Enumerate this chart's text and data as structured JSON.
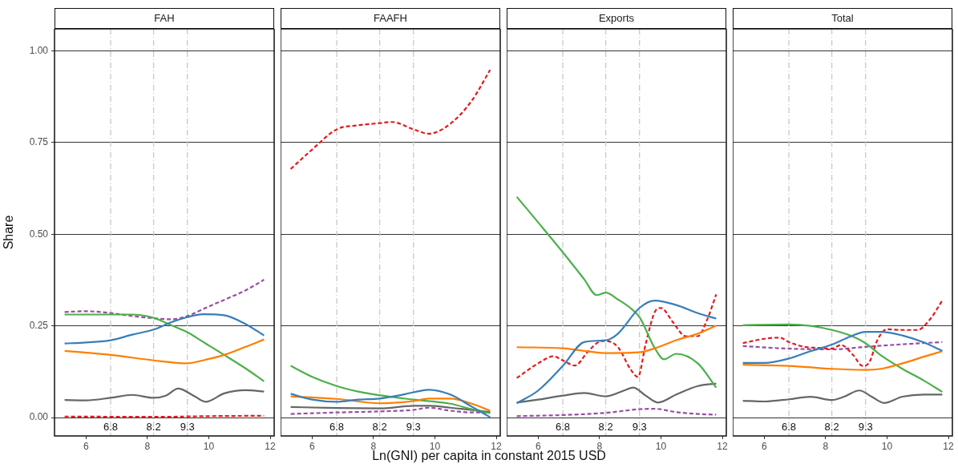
{
  "chart_data": [
    {
      "type": "line",
      "title": "FAH",
      "ylabel": "Share",
      "xlim": [
        4.97,
        12.13
      ],
      "xticks": [
        6,
        8,
        10,
        12
      ],
      "ylim": [
        -0.05,
        1.06
      ],
      "yticks": [
        {
          "value": 0,
          "label": "0.00"
        },
        {
          "value": 0.25,
          "label": "0.25"
        },
        {
          "value": 0.5,
          "label": "0.50"
        },
        {
          "value": 0.75,
          "label": "0.75"
        },
        {
          "value": 1,
          "label": "1.00"
        }
      ],
      "grid": "y",
      "legend": false,
      "marker": "none",
      "ref_lines": [
        {
          "axis": "x",
          "value": 6.8,
          "label": "6.8",
          "color": "#c8c8c8",
          "line_style": "dashed"
        },
        {
          "axis": "x",
          "value": 8.2,
          "label": "8.2",
          "color": "#c8c8c8",
          "line_style": "dashed"
        },
        {
          "axis": "x",
          "value": 9.3,
          "label": "9.3",
          "color": "#c8c8c8",
          "line_style": "dashed"
        }
      ],
      "series": [
        {
          "color": "#377eb8",
          "line_style": "solid",
          "x": [
            5.3,
            6,
            6.8,
            7.5,
            8.2,
            8.8,
            9.3,
            9.8,
            10.5,
            11.2,
            11.8
          ],
          "values": [
            0.202,
            0.205,
            0.211,
            0.226,
            0.24,
            0.261,
            0.274,
            0.282,
            0.279,
            0.255,
            0.224
          ]
        },
        {
          "color": "#ff7f00",
          "line_style": "solid",
          "x": [
            5.3,
            6.8,
            8.2,
            9.3,
            9.8,
            10.5,
            11.2,
            11.8
          ],
          "values": [
            0.182,
            0.171,
            0.156,
            0.148,
            0.156,
            0.171,
            0.193,
            0.213
          ]
        },
        {
          "color": "#4daf4a",
          "line_style": "solid",
          "x": [
            5.3,
            6.8,
            7.5,
            8.2,
            8.8,
            9.3,
            9.8,
            10.5,
            11.2,
            11.8
          ],
          "values": [
            0.281,
            0.281,
            0.281,
            0.272,
            0.251,
            0.233,
            0.207,
            0.171,
            0.134,
            0.099
          ]
        },
        {
          "color": "#666666",
          "line_style": "solid",
          "x": [
            5.3,
            6,
            6.8,
            7.5,
            8.2,
            8.6,
            9,
            9.5,
            9.9,
            10.5,
            11.2,
            11.8
          ],
          "values": [
            0.048,
            0.047,
            0.054,
            0.062,
            0.054,
            0.06,
            0.079,
            0.06,
            0.043,
            0.066,
            0.075,
            0.071
          ]
        },
        {
          "color": "#e41a1c",
          "line_style": "dashed",
          "x": [
            5.3,
            8.2,
            10,
            11.8
          ],
          "values": [
            0.003,
            0.002,
            0.004,
            0.005
          ]
        },
        {
          "color": "#984ea3",
          "line_style": "dashed",
          "x": [
            5.3,
            6,
            6.8,
            7.5,
            8.2,
            8.8,
            9.3,
            10,
            10.5,
            11.2,
            11.8
          ],
          "values": [
            0.288,
            0.29,
            0.285,
            0.277,
            0.271,
            0.268,
            0.277,
            0.303,
            0.321,
            0.347,
            0.376
          ]
        }
      ]
    },
    {
      "type": "line",
      "title": "FAAFH",
      "xlabel": "Ln(GNI) per capita in constant 2015 USD",
      "xlim": [
        4.97,
        12.13
      ],
      "xticks": [
        6,
        8,
        10,
        12
      ],
      "ylim": [
        -0.05,
        1.06
      ],
      "yticks": [
        0,
        0.25,
        0.5,
        0.75,
        1
      ],
      "tick_labels": "x",
      "grid": "y",
      "legend": false,
      "marker": "none",
      "ref_lines": [
        {
          "axis": "x",
          "value": 6.8,
          "label": "6.8",
          "color": "#c8c8c8",
          "line_style": "dashed"
        },
        {
          "axis": "x",
          "value": 8.2,
          "label": "8.2",
          "color": "#c8c8c8",
          "line_style": "dashed"
        },
        {
          "axis": "x",
          "value": 9.3,
          "label": "9.3",
          "color": "#c8c8c8",
          "line_style": "dashed"
        }
      ],
      "series": [
        {
          "color": "#377eb8",
          "line_style": "solid",
          "x": [
            5.3,
            6,
            6.8,
            7.5,
            8.2,
            8.8,
            9.3,
            9.8,
            10.5,
            11.2,
            11.8
          ],
          "values": [
            0.065,
            0.049,
            0.043,
            0.049,
            0.052,
            0.06,
            0.069,
            0.076,
            0.063,
            0.03,
            0.001
          ]
        },
        {
          "color": "#ff7f00",
          "line_style": "solid",
          "x": [
            5.3,
            6.8,
            8.2,
            9.3,
            9.8,
            10.5,
            11.2,
            11.8
          ],
          "values": [
            0.058,
            0.051,
            0.039,
            0.045,
            0.052,
            0.052,
            0.038,
            0.019
          ]
        },
        {
          "color": "#4daf4a",
          "line_style": "solid",
          "x": [
            5.3,
            6,
            6.8,
            7.5,
            8.2,
            9.3,
            10.5,
            11.2,
            11.8
          ],
          "values": [
            0.141,
            0.111,
            0.086,
            0.071,
            0.061,
            0.049,
            0.038,
            0.023,
            0.012
          ]
        },
        {
          "color": "#666666",
          "line_style": "solid",
          "x": [
            5.3,
            6.8,
            8.2,
            9.3,
            9.8,
            10.5,
            11.8
          ],
          "values": [
            0.029,
            0.026,
            0.025,
            0.032,
            0.032,
            0.027,
            0.015
          ]
        },
        {
          "color": "#e41a1c",
          "line_style": "dashed",
          "x": [
            5.3,
            6,
            6.8,
            7.5,
            8.2,
            8.6,
            9.3,
            9.8,
            10.5,
            11.2,
            11.8
          ],
          "values": [
            0.678,
            0.731,
            0.786,
            0.797,
            0.803,
            0.806,
            0.786,
            0.774,
            0.801,
            0.864,
            0.948
          ]
        },
        {
          "color": "#984ea3",
          "line_style": "dashed",
          "x": [
            5.3,
            6.8,
            8.2,
            9.3,
            9.8,
            10.5,
            11.2,
            11.8
          ],
          "values": [
            0.01,
            0.014,
            0.017,
            0.021,
            0.027,
            0.019,
            0.014,
            0.014
          ]
        }
      ]
    },
    {
      "type": "line",
      "title": "Exports",
      "xlim": [
        4.97,
        12.13
      ],
      "xticks": [
        6,
        8,
        10,
        12
      ],
      "ylim": [
        -0.05,
        1.06
      ],
      "yticks": [
        0,
        0.25,
        0.5,
        0.75,
        1
      ],
      "tick_labels": "x",
      "grid": "y",
      "legend": false,
      "marker": "none",
      "ref_lines": [
        {
          "axis": "x",
          "value": 6.8,
          "label": "6.8",
          "color": "#c8c8c8",
          "line_style": "dashed"
        },
        {
          "axis": "x",
          "value": 8.2,
          "label": "8.2",
          "color": "#c8c8c8",
          "line_style": "dashed"
        },
        {
          "axis": "x",
          "value": 9.3,
          "label": "9.3",
          "color": "#c8c8c8",
          "line_style": "dashed"
        }
      ],
      "series": [
        {
          "color": "#377eb8",
          "line_style": "solid",
          "x": [
            5.3,
            6,
            6.8,
            7.5,
            8.2,
            8.6,
            9.3,
            9.8,
            10.5,
            11.2,
            11.8
          ],
          "values": [
            0.039,
            0.074,
            0.141,
            0.206,
            0.211,
            0.229,
            0.299,
            0.319,
            0.307,
            0.285,
            0.27
          ]
        },
        {
          "color": "#ff7f00",
          "line_style": "solid",
          "x": [
            5.3,
            6.8,
            8.2,
            9.3,
            9.8,
            10.5,
            11.2,
            11.8
          ],
          "values": [
            0.192,
            0.189,
            0.176,
            0.178,
            0.189,
            0.211,
            0.229,
            0.251
          ]
        },
        {
          "color": "#4daf4a",
          "line_style": "solid",
          "x": [
            5.3,
            6,
            6.8,
            7.5,
            7.9,
            8.2,
            8.6,
            9,
            9.3,
            9.8,
            10.1,
            10.5,
            11.2,
            11.8
          ],
          "values": [
            0.602,
            0.532,
            0.451,
            0.377,
            0.334,
            0.341,
            0.322,
            0.299,
            0.274,
            0.189,
            0.159,
            0.174,
            0.148,
            0.082
          ]
        },
        {
          "color": "#666666",
          "line_style": "solid",
          "x": [
            5.3,
            6,
            6.8,
            7.5,
            8.2,
            8.8,
            9.1,
            9.5,
            9.9,
            10.5,
            11.2,
            11.8
          ],
          "values": [
            0.041,
            0.049,
            0.06,
            0.067,
            0.058,
            0.074,
            0.082,
            0.06,
            0.041,
            0.063,
            0.086,
            0.093
          ]
        },
        {
          "color": "#e41a1c",
          "line_style": "dashed",
          "x": [
            5.3,
            6,
            6.5,
            6.8,
            7.2,
            7.6,
            8,
            8.2,
            8.6,
            9,
            9.25,
            9.5,
            9.8,
            10,
            10.4,
            10.8,
            11.2,
            11.5,
            11.8
          ],
          "values": [
            0.108,
            0.148,
            0.167,
            0.156,
            0.142,
            0.178,
            0.207,
            0.209,
            0.192,
            0.133,
            0.111,
            0.2,
            0.288,
            0.299,
            0.259,
            0.222,
            0.222,
            0.266,
            0.336
          ]
        },
        {
          "color": "#984ea3",
          "line_style": "dashed",
          "x": [
            5.3,
            6.8,
            8.2,
            9.3,
            9.8,
            10.5,
            11.2,
            11.8
          ],
          "values": [
            0.004,
            0.007,
            0.013,
            0.023,
            0.024,
            0.015,
            0.01,
            0.008
          ]
        }
      ]
    },
    {
      "type": "line",
      "title": "Total",
      "xlim": [
        4.97,
        12.13
      ],
      "xticks": [
        6,
        8,
        10,
        12
      ],
      "ylim": [
        -0.05,
        1.06
      ],
      "yticks": [
        0,
        0.25,
        0.5,
        0.75,
        1
      ],
      "tick_labels": "x",
      "grid": "y",
      "legend": false,
      "marker": "none",
      "ref_lines": [
        {
          "axis": "x",
          "value": 6.8,
          "label": "6.8",
          "color": "#c8c8c8",
          "line_style": "dashed"
        },
        {
          "axis": "x",
          "value": 8.2,
          "label": "8.2",
          "color": "#c8c8c8",
          "line_style": "dashed"
        },
        {
          "axis": "x",
          "value": 9.3,
          "label": "9.3",
          "color": "#c8c8c8",
          "line_style": "dashed"
        }
      ],
      "series": [
        {
          "color": "#377eb8",
          "line_style": "solid",
          "x": [
            5.3,
            6,
            6.8,
            7.5,
            8.2,
            8.8,
            9.3,
            9.8,
            10.5,
            11.2,
            11.8
          ],
          "values": [
            0.149,
            0.149,
            0.161,
            0.181,
            0.199,
            0.221,
            0.234,
            0.234,
            0.224,
            0.205,
            0.182
          ]
        },
        {
          "color": "#ff7f00",
          "line_style": "solid",
          "x": [
            5.3,
            6.8,
            8.2,
            9.3,
            9.8,
            10.5,
            11.2,
            11.8
          ],
          "values": [
            0.144,
            0.141,
            0.133,
            0.13,
            0.133,
            0.148,
            0.166,
            0.181
          ]
        },
        {
          "color": "#4daf4a",
          "line_style": "solid",
          "x": [
            5.3,
            6.8,
            7.5,
            8.2,
            8.8,
            9.3,
            9.8,
            10.5,
            11.2,
            11.8
          ],
          "values": [
            0.252,
            0.254,
            0.25,
            0.239,
            0.224,
            0.203,
            0.17,
            0.133,
            0.101,
            0.07
          ]
        },
        {
          "color": "#666666",
          "line_style": "solid",
          "x": [
            5.3,
            6,
            6.8,
            7.5,
            8.2,
            8.6,
            9.1,
            9.5,
            9.9,
            10.5,
            11.2,
            11.8
          ],
          "values": [
            0.046,
            0.044,
            0.05,
            0.057,
            0.048,
            0.057,
            0.074,
            0.057,
            0.04,
            0.057,
            0.063,
            0.063
          ]
        },
        {
          "color": "#e41a1c",
          "line_style": "dashed",
          "x": [
            5.3,
            6,
            6.5,
            6.8,
            7.3,
            7.8,
            8.2,
            8.5,
            8.9,
            9.2,
            9.4,
            9.7,
            10,
            10.5,
            11,
            11.4,
            11.8
          ],
          "values": [
            0.203,
            0.215,
            0.218,
            0.206,
            0.193,
            0.19,
            0.188,
            0.198,
            0.17,
            0.141,
            0.148,
            0.214,
            0.241,
            0.239,
            0.239,
            0.268,
            0.319
          ]
        },
        {
          "color": "#984ea3",
          "line_style": "dashed",
          "x": [
            5.3,
            6.8,
            8.2,
            9.3,
            10.5,
            11.8
          ],
          "values": [
            0.195,
            0.188,
            0.186,
            0.193,
            0.2,
            0.206
          ]
        }
      ]
    }
  ]
}
